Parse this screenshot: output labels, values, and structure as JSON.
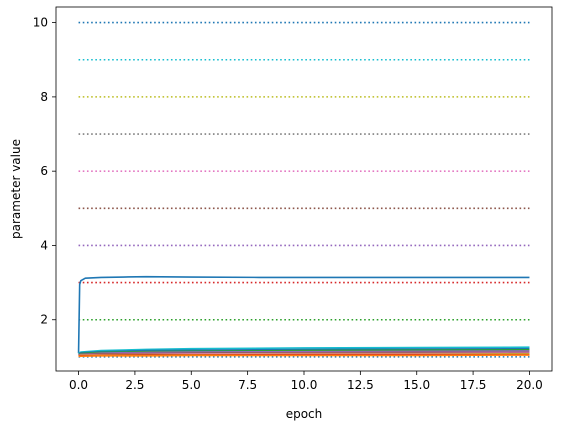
{
  "chart_data": {
    "type": "line",
    "xlabel": "epoch",
    "ylabel": "parameter value",
    "xlim": [
      -1,
      21
    ],
    "ylim": [
      0.62,
      10.42
    ],
    "xticks": [
      0.0,
      2.5,
      5.0,
      7.5,
      10.0,
      12.5,
      15.0,
      17.5,
      20.0
    ],
    "xtick_labels": [
      "0.0",
      "2.5",
      "5.0",
      "7.5",
      "10.0",
      "12.5",
      "15.0",
      "17.5",
      "20.0"
    ],
    "yticks": [
      2,
      4,
      6,
      8,
      10
    ],
    "ytick_labels": [
      "2",
      "4",
      "6",
      "8",
      "10"
    ],
    "grid": false,
    "reference_lines": [
      {
        "y": 1,
        "color": "#1f77b4"
      },
      {
        "y": 2,
        "color": "#2ca02c"
      },
      {
        "y": 3,
        "color": "#d62728"
      },
      {
        "y": 4,
        "color": "#9467bd"
      },
      {
        "y": 5,
        "color": "#8c564b"
      },
      {
        "y": 6,
        "color": "#e377c2"
      },
      {
        "y": 7,
        "color": "#7f7f7f"
      },
      {
        "y": 8,
        "color": "#bcbd22"
      },
      {
        "y": 9,
        "color": "#17becf"
      },
      {
        "y": 10,
        "color": "#1f77b4"
      }
    ],
    "series": [
      {
        "color": "#1f77b4",
        "x": [
          0,
          0.05,
          0.1,
          0.3,
          1,
          2,
          3,
          5,
          8,
          12,
          16,
          20
        ],
        "y": [
          1.1,
          2.95,
          3.05,
          3.12,
          3.14,
          3.15,
          3.16,
          3.15,
          3.14,
          3.14,
          3.14,
          3.14
        ]
      },
      {
        "color": "#17becf",
        "x": [
          0,
          0.1,
          1,
          3,
          5,
          10,
          15,
          20
        ],
        "y": [
          1.1,
          1.13,
          1.17,
          1.2,
          1.22,
          1.24,
          1.25,
          1.26
        ]
      },
      {
        "color": "#1f77b4",
        "x": [
          0,
          0.1,
          1,
          3,
          5,
          10,
          15,
          20
        ],
        "y": [
          1.08,
          1.11,
          1.14,
          1.17,
          1.18,
          1.2,
          1.21,
          1.22
        ]
      },
      {
        "color": "#2ca02c",
        "x": [
          0,
          0.1,
          1,
          3,
          5,
          10,
          15,
          20
        ],
        "y": [
          1.06,
          1.09,
          1.12,
          1.14,
          1.15,
          1.17,
          1.18,
          1.19
        ]
      },
      {
        "color": "#9467bd",
        "x": [
          0,
          0.1,
          1,
          3,
          5,
          10,
          15,
          20
        ],
        "y": [
          1.05,
          1.07,
          1.1,
          1.12,
          1.13,
          1.14,
          1.15,
          1.16
        ]
      },
      {
        "color": "#8c564b",
        "x": [
          0,
          0.1,
          1,
          3,
          5,
          10,
          15,
          20
        ],
        "y": [
          1.04,
          1.06,
          1.08,
          1.09,
          1.1,
          1.11,
          1.12,
          1.12
        ]
      },
      {
        "color": "#e377c2",
        "x": [
          0,
          0.1,
          1,
          3,
          5,
          10,
          15,
          20
        ],
        "y": [
          1.03,
          1.05,
          1.06,
          1.07,
          1.08,
          1.09,
          1.09,
          1.1
        ]
      },
      {
        "color": "#bcbd22",
        "x": [
          0,
          0.1,
          1,
          3,
          5,
          10,
          15,
          20
        ],
        "y": [
          1.02,
          1.04,
          1.05,
          1.06,
          1.06,
          1.07,
          1.07,
          1.08
        ]
      },
      {
        "color": "#d62728",
        "x": [
          0,
          0.1,
          1,
          3,
          5,
          10,
          15,
          20
        ],
        "y": [
          1.02,
          1.03,
          1.04,
          1.05,
          1.05,
          1.06,
          1.06,
          1.06
        ]
      },
      {
        "color": "#ff7f0e",
        "x": [
          0,
          0.1,
          1,
          3,
          5,
          10,
          15,
          20
        ],
        "y": [
          1.01,
          1.02,
          1.03,
          1.03,
          1.04,
          1.04,
          1.04,
          1.05
        ]
      }
    ]
  }
}
